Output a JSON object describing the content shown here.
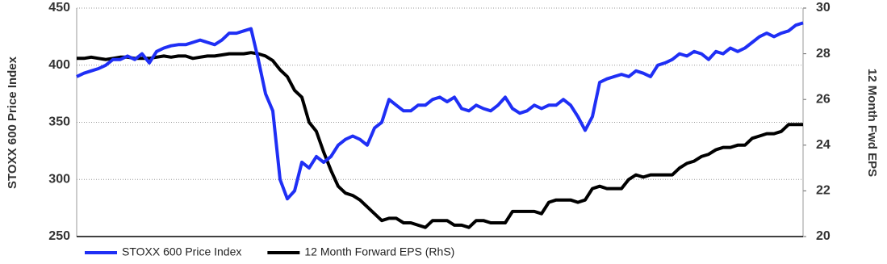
{
  "chart_data": {
    "type": "line",
    "y_label": "STOXX 600 Price Index",
    "y2_label": "12 Month Fwd EPS",
    "categories": [
      null,
      null,
      null,
      null,
      null,
      null,
      null,
      null,
      null,
      null,
      null,
      null,
      null,
      null,
      null,
      null,
      null,
      null,
      null,
      null,
      null,
      null,
      null,
      null,
      null,
      null,
      null,
      null,
      null,
      null,
      null,
      null,
      null,
      null,
      null,
      null,
      null,
      null,
      null,
      null,
      null,
      null,
      null,
      null,
      null,
      null,
      null,
      null,
      null,
      null,
      null,
      null,
      null,
      null,
      null,
      null,
      null,
      null,
      null,
      null,
      null,
      null,
      null,
      null,
      null,
      null,
      null,
      null,
      null,
      null,
      null,
      null,
      null,
      null,
      null,
      null,
      null,
      null,
      null,
      null,
      null,
      null,
      null,
      null,
      null,
      null,
      null,
      null,
      null,
      null,
      null,
      null,
      null,
      null,
      null,
      null,
      null,
      null,
      null,
      null,
      null
    ],
    "ylim": [
      250,
      450
    ],
    "yticks": [
      250,
      300,
      350,
      400,
      450
    ],
    "y2lim": [
      20,
      30
    ],
    "y2ticks": [
      20,
      22,
      24,
      26,
      28,
      30
    ],
    "grid": true,
    "legend": "bottom",
    "series": [
      {
        "name": "STOXX 600 Price Index",
        "color": "#1f2ff5",
        "values": [
          390,
          393,
          395,
          397,
          400,
          405,
          405,
          408,
          405,
          410,
          402,
          412,
          415,
          417,
          418,
          418,
          420,
          422,
          420,
          418,
          422,
          428,
          428,
          430,
          432,
          405,
          375,
          360,
          300,
          283,
          290,
          315,
          310,
          320,
          315,
          320,
          330,
          335,
          338,
          335,
          330,
          345,
          350,
          370,
          365,
          360,
          360,
          365,
          365,
          370,
          372,
          368,
          372,
          362,
          360,
          365,
          362,
          360,
          365,
          372,
          362,
          358,
          360,
          365,
          362,
          365,
          365,
          370,
          365,
          355,
          343,
          355,
          385,
          388,
          390,
          392,
          390,
          395,
          393,
          390,
          400,
          402,
          405,
          410,
          408,
          412,
          410,
          405,
          412,
          410,
          415,
          412,
          415,
          420,
          425,
          428,
          425,
          428,
          430,
          435,
          437
        ]
      },
      {
        "name": "12 Month Forward EPS (RhS)",
        "color": "#000000",
        "axis": "y2",
        "values": [
          27.8,
          27.8,
          27.85,
          27.8,
          27.75,
          27.8,
          27.85,
          27.85,
          27.8,
          27.8,
          27.8,
          27.85,
          27.9,
          27.85,
          27.9,
          27.9,
          27.8,
          27.85,
          27.9,
          27.9,
          27.95,
          28.0,
          28.0,
          28.0,
          28.05,
          28.0,
          27.9,
          27.7,
          27.3,
          27.0,
          26.4,
          26.1,
          25.0,
          24.6,
          23.7,
          22.9,
          22.2,
          21.9,
          21.8,
          21.6,
          21.3,
          21.0,
          20.7,
          20.8,
          20.8,
          20.6,
          20.6,
          20.5,
          20.4,
          20.7,
          20.7,
          20.7,
          20.5,
          20.5,
          20.4,
          20.7,
          20.7,
          20.6,
          20.6,
          20.6,
          21.1,
          21.1,
          21.1,
          21.1,
          21.0,
          21.5,
          21.6,
          21.6,
          21.6,
          21.5,
          21.6,
          22.1,
          22.2,
          22.1,
          22.1,
          22.1,
          22.5,
          22.7,
          22.6,
          22.7,
          22.7,
          22.7,
          22.7,
          23.0,
          23.2,
          23.3,
          23.5,
          23.6,
          23.8,
          23.9,
          23.9,
          24.0,
          24.0,
          24.3,
          24.4,
          24.5,
          24.5,
          24.6,
          24.9,
          24.9,
          24.9
        ]
      }
    ]
  }
}
